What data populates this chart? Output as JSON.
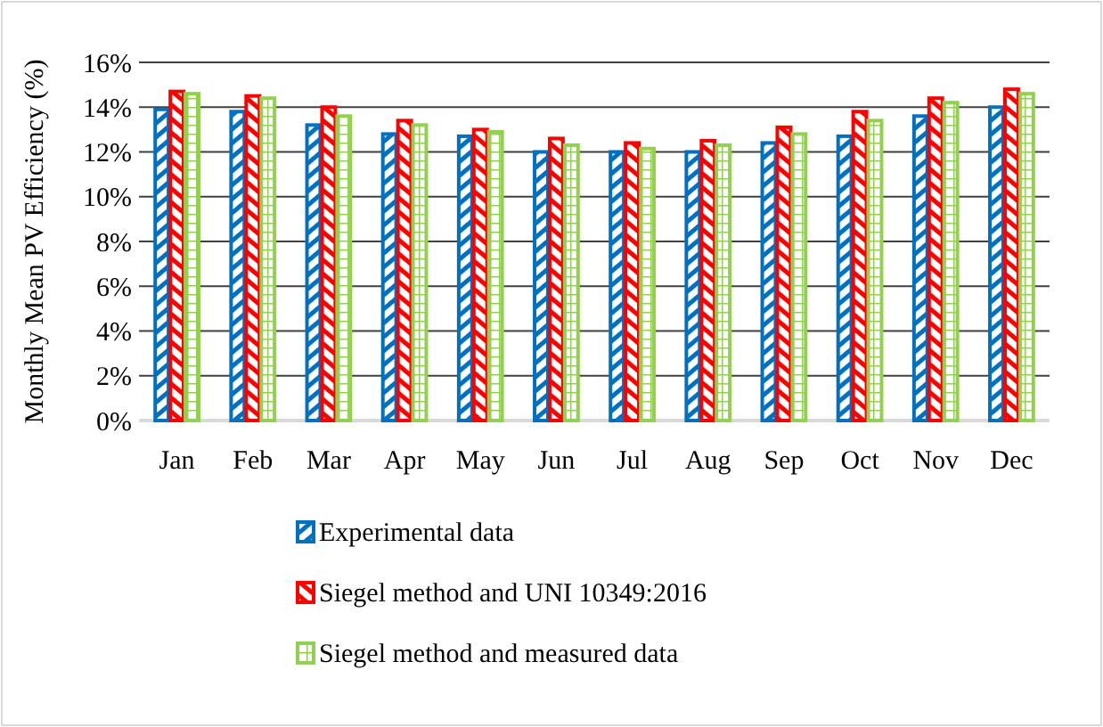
{
  "chart_data": {
    "type": "bar",
    "ylabel": "Monthly Mean PV Efficiency (%)",
    "categories": [
      "Jan",
      "Feb",
      "Mar",
      "Apr",
      "May",
      "Jun",
      "Jul",
      "Aug",
      "Sep",
      "Oct",
      "Nov",
      "Dec"
    ],
    "series": [
      {
        "name": "Experimental data",
        "color": "#0070c0",
        "values": [
          13.9,
          13.8,
          13.2,
          12.8,
          12.7,
          12.0,
          12.0,
          12.0,
          12.4,
          12.7,
          13.6,
          14.0
        ]
      },
      {
        "name": "Siegel method and UNI 10349:2016",
        "color": "#ff0000",
        "values": [
          14.7,
          14.5,
          14.0,
          13.4,
          13.0,
          12.6,
          12.4,
          12.5,
          13.1,
          13.8,
          14.4,
          14.8
        ]
      },
      {
        "name": "Siegel method and measured data",
        "color": "#92d050",
        "values": [
          14.6,
          14.4,
          13.6,
          13.2,
          12.9,
          12.3,
          12.15,
          12.3,
          12.8,
          13.4,
          14.2,
          14.6
        ]
      }
    ],
    "ylim": [
      0,
      16
    ],
    "yticks": [
      {
        "value": 0,
        "label": "0%"
      },
      {
        "value": 2,
        "label": "2%"
      },
      {
        "value": 4,
        "label": "4%"
      },
      {
        "value": 6,
        "label": "6%"
      },
      {
        "value": 8,
        "label": "8%"
      },
      {
        "value": 10,
        "label": "10%"
      },
      {
        "value": 12,
        "label": "12%"
      },
      {
        "value": 14,
        "label": "14%"
      },
      {
        "value": 16,
        "label": "16%"
      }
    ],
    "grid": "y",
    "legend": "bottom"
  }
}
